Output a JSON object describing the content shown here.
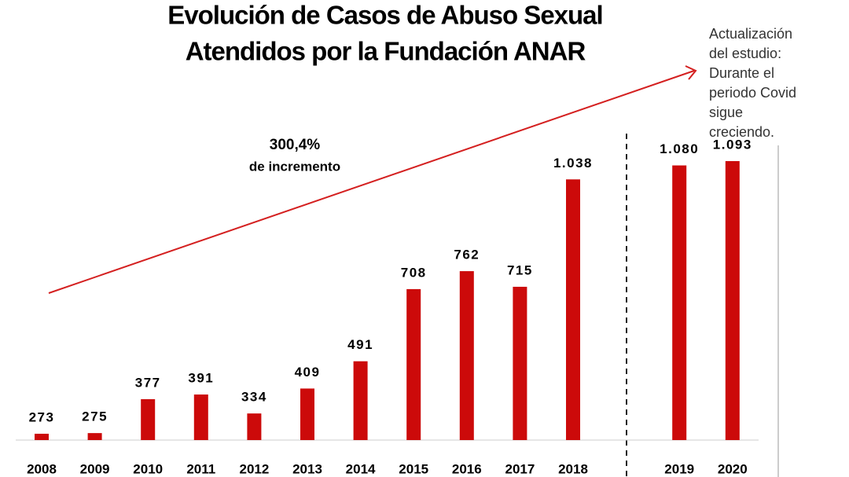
{
  "chart_data": {
    "type": "bar",
    "title": [
      "Evolución de Casos de Abuso Sexual",
      "Atendidos por la Fundación ANAR"
    ],
    "annotations": [
      "300,4%",
      "de incremento"
    ],
    "note": [
      "Actualización",
      "del estudio:",
      "Durante el",
      "periodo Covid",
      "sigue",
      "creciendo."
    ],
    "categories": [
      "2008",
      "2009",
      "2010",
      "2011",
      "2012",
      "2013",
      "2014",
      "2015",
      "2016",
      "2017",
      "2018",
      "2019",
      "2020"
    ],
    "values": [
      273,
      275,
      377,
      391,
      334,
      409,
      491,
      708,
      762,
      715,
      1038,
      1080,
      1093
    ],
    "value_labels": [
      "273",
      "275",
      "377",
      "391",
      "334",
      "409",
      "491",
      "708",
      "762",
      "715",
      "1.038",
      "1.080",
      "1.093"
    ],
    "color": "#cc0a0a",
    "ylim": [
      254,
      1223
    ]
  }
}
